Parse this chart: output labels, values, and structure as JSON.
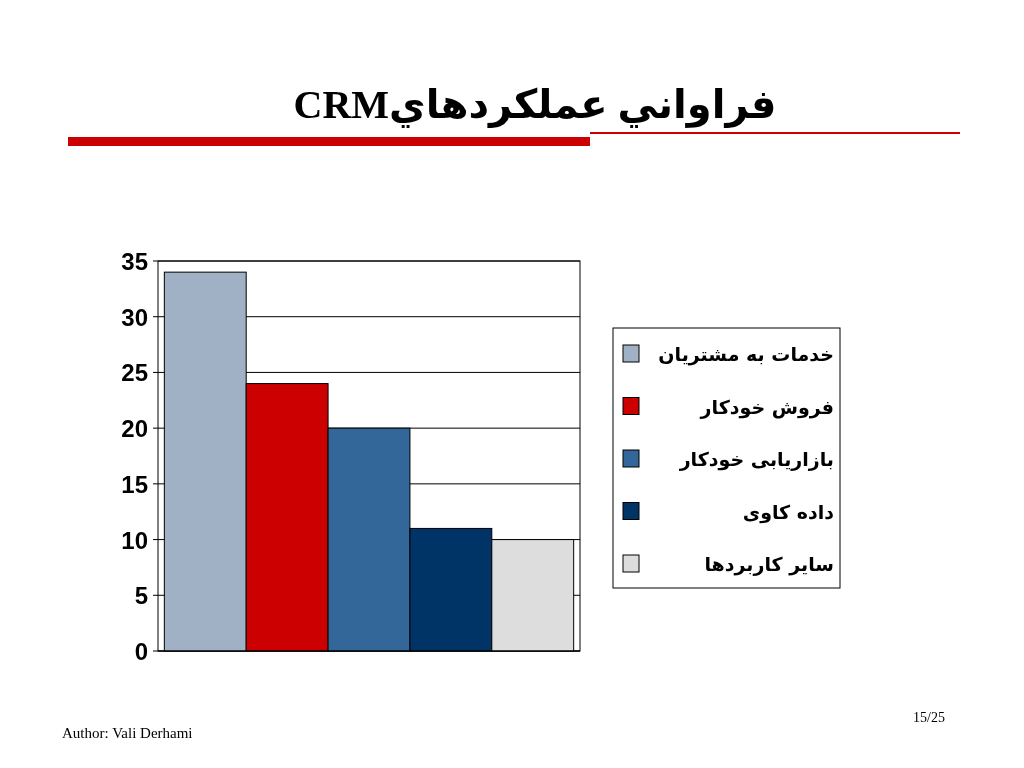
{
  "chart_data": {
    "type": "bar",
    "title": "فراواني عملكردهايCRM",
    "categories": [
      null
    ],
    "series": [
      {
        "name": "خدمات به مشتریان",
        "color": "#a1b1c5",
        "values": [
          34
        ]
      },
      {
        "name": "فروش خودکار",
        "color": "#cc0000",
        "values": [
          24
        ]
      },
      {
        "name": "بازاریابی خودکار",
        "color": "#336699",
        "values": [
          20
        ]
      },
      {
        "name": "داده کاوی",
        "color": "#003366",
        "values": [
          11
        ]
      },
      {
        "name": "سایر کاربردها",
        "color": "#dddddd",
        "values": [
          10
        ]
      }
    ],
    "ylim": [
      0,
      35
    ],
    "yticks": [
      0,
      5,
      10,
      15,
      20,
      25,
      30,
      35
    ],
    "grid": "y",
    "legend": "right",
    "annotations": [
      "Author: Vali Derhami",
      "15/25"
    ]
  }
}
